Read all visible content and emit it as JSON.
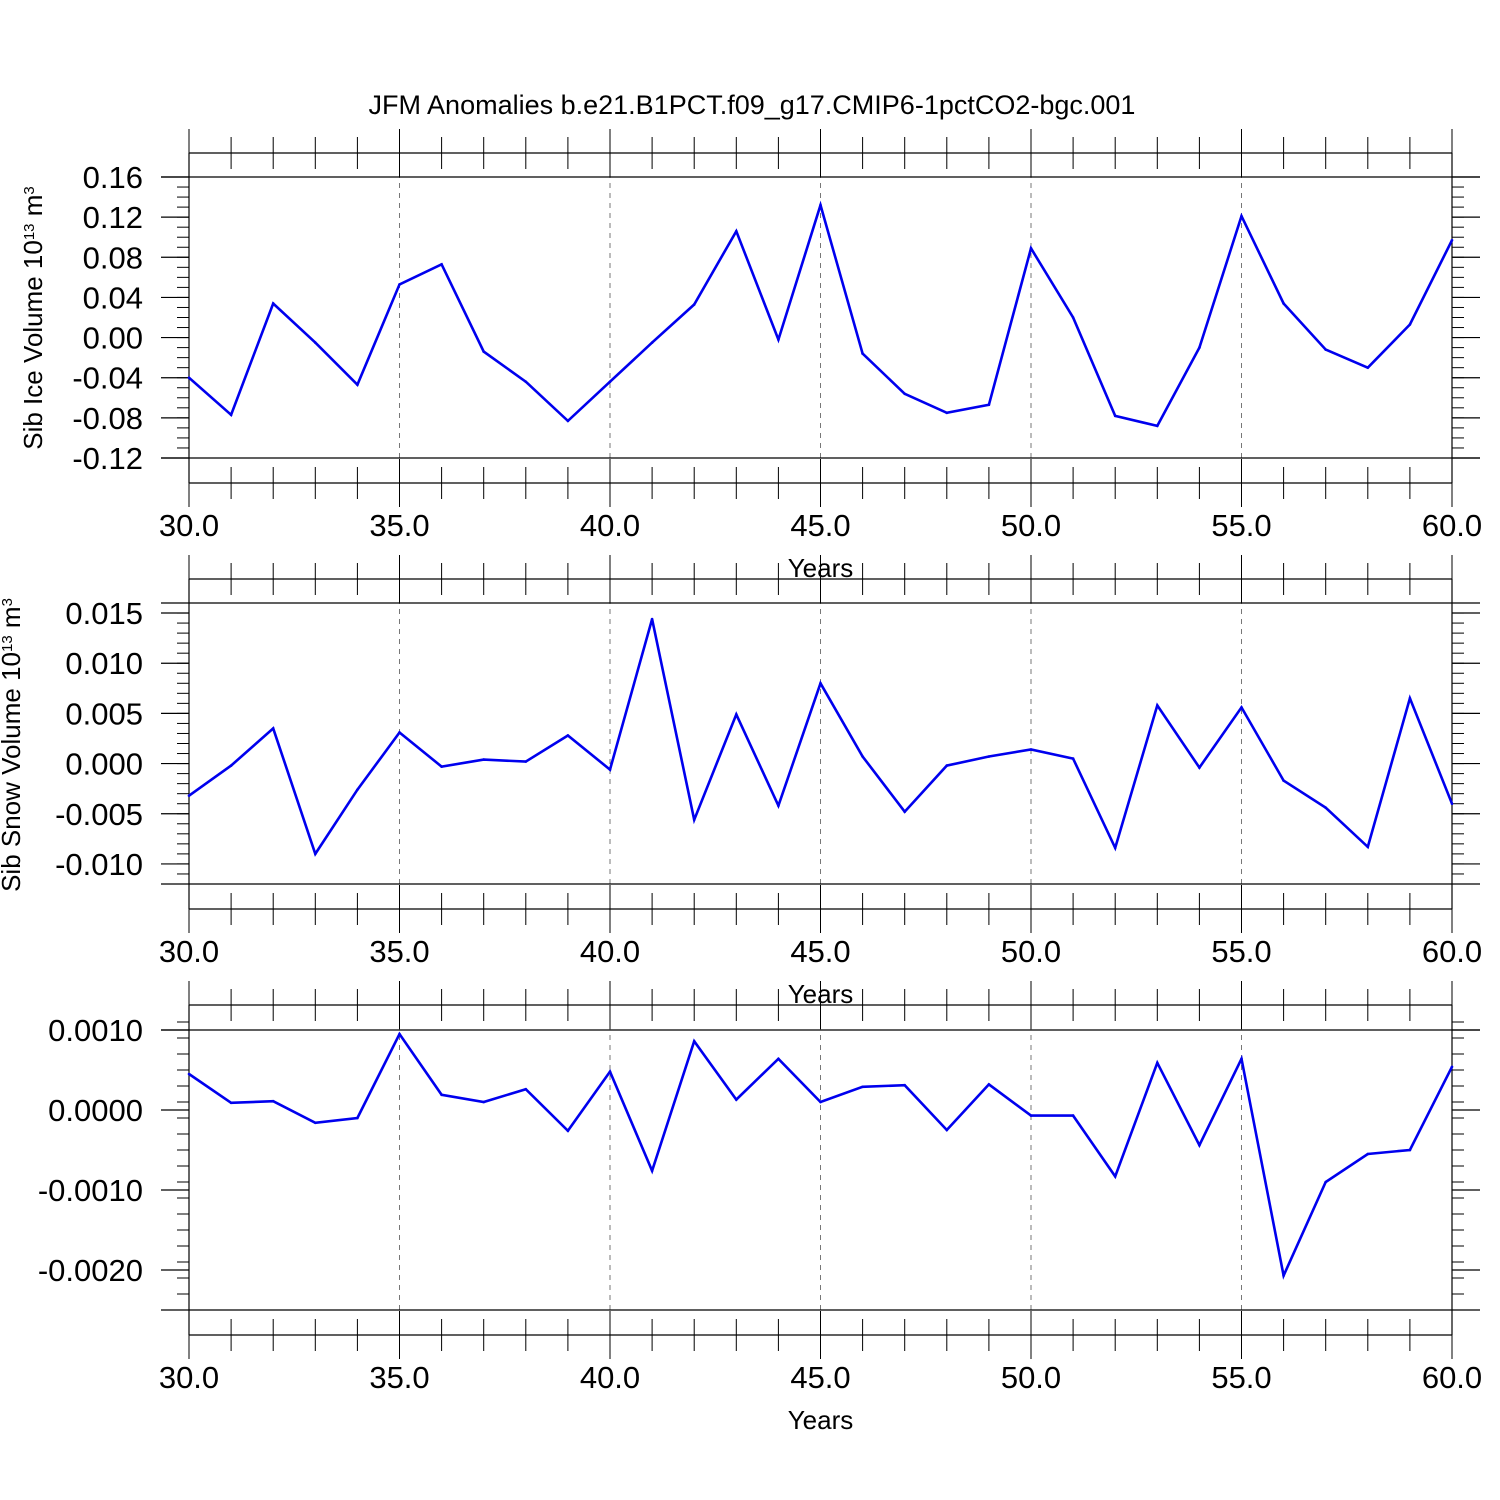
{
  "figure": {
    "title": "JFM Anomalies b.e21.B1PCT.f09_g17.CMIP6-1pctCO2-bgc.001",
    "line_color": "#0000ee",
    "grid_color": "#777777"
  },
  "chart_data": [
    {
      "type": "line",
      "ylabel": "Sib Ice Volume 10",
      "ylabel_sup": "13",
      "ylabel_unit": " m",
      "ylabel_unit_sup": "3",
      "xlabel": "Years",
      "xlim": [
        30,
        60
      ],
      "ylim": [
        -0.12,
        0.16
      ],
      "x_ticks": [
        30,
        35,
        40,
        45,
        50,
        55,
        60
      ],
      "x_tick_labels": [
        "30.0",
        "35.0",
        "40.0",
        "45.0",
        "50.0",
        "55.0",
        "60.0"
      ],
      "y_ticks": [
        -0.12,
        -0.08,
        -0.04,
        0.0,
        0.04,
        0.08,
        0.12,
        0.16
      ],
      "y_tick_labels": [
        "-0.12",
        "-0.08",
        "-0.04",
        "0.00",
        "0.04",
        "0.08",
        "0.12",
        "0.16"
      ],
      "y_minor_step": 0.01,
      "grid": "vertical dashed at major x ticks",
      "x": [
        30,
        31,
        32,
        33,
        34,
        35,
        36,
        37,
        38,
        39,
        40,
        41,
        42,
        43,
        44,
        45,
        46,
        47,
        48,
        49,
        50,
        51,
        52,
        53,
        54,
        55,
        56,
        57,
        58,
        59,
        60
      ],
      "y": [
        -0.04,
        -0.077,
        0.034,
        -0.005,
        -0.047,
        0.053,
        0.073,
        -0.014,
        -0.044,
        -0.083,
        -0.044,
        -0.005,
        0.033,
        0.106,
        -0.002,
        0.132,
        -0.016,
        -0.056,
        -0.075,
        -0.067,
        0.089,
        0.02,
        -0.078,
        -0.088,
        -0.01,
        0.121,
        0.034,
        -0.012,
        -0.03,
        0.013,
        0.097
      ]
    },
    {
      "type": "line",
      "ylabel": "Sib Snow Volume 10",
      "ylabel_sup": "13",
      "ylabel_unit": " m",
      "ylabel_unit_sup": "3",
      "xlabel": "Years",
      "xlim": [
        30,
        60
      ],
      "ylim": [
        -0.012,
        0.016
      ],
      "x_ticks": [
        30,
        35,
        40,
        45,
        50,
        55,
        60
      ],
      "x_tick_labels": [
        "30.0",
        "35.0",
        "40.0",
        "45.0",
        "50.0",
        "55.0",
        "60.0"
      ],
      "y_ticks": [
        -0.01,
        -0.005,
        0.0,
        0.005,
        0.01,
        0.015
      ],
      "y_tick_labels": [
        "-0.010",
        "-0.005",
        "0.000",
        "0.005",
        "0.010",
        "0.015"
      ],
      "y_minor_step": 0.001,
      "grid": "vertical dashed at major x ticks",
      "x": [
        30,
        31,
        32,
        33,
        34,
        35,
        36,
        37,
        38,
        39,
        40,
        41,
        42,
        43,
        44,
        45,
        46,
        47,
        48,
        49,
        50,
        51,
        52,
        53,
        54,
        55,
        56,
        57,
        58,
        59,
        60
      ],
      "y": [
        -0.0032,
        -0.0002,
        0.0035,
        -0.009,
        -0.0026,
        0.0031,
        -0.0003,
        0.0004,
        0.0002,
        0.0028,
        -0.0006,
        0.0144,
        -0.0056,
        0.0049,
        -0.0042,
        0.008,
        0.0007,
        -0.0048,
        -0.0002,
        0.0007,
        0.0014,
        0.0005,
        -0.0084,
        0.0058,
        -0.0004,
        0.0056,
        -0.0017,
        -0.0044,
        -0.0083,
        0.0065,
        -0.004
      ]
    },
    {
      "type": "line",
      "ylabel": "",
      "xlabel": "Years",
      "xlim": [
        30,
        60
      ],
      "ylim": [
        -0.0025,
        0.001
      ],
      "x_ticks": [
        30,
        35,
        40,
        45,
        50,
        55,
        60
      ],
      "x_tick_labels": [
        "30.0",
        "35.0",
        "40.0",
        "45.0",
        "50.0",
        "55.0",
        "60.0"
      ],
      "y_ticks": [
        -0.002,
        -0.001,
        0.0,
        0.001
      ],
      "y_tick_labels": [
        "-0.0020",
        "-0.0010",
        "0.0000",
        "0.0010"
      ],
      "y_minor_step": 0.0002,
      "grid": "vertical dashed at major x ticks",
      "x": [
        30,
        31,
        32,
        33,
        34,
        35,
        36,
        37,
        38,
        39,
        40,
        41,
        42,
        43,
        44,
        45,
        46,
        47,
        48,
        49,
        50,
        51,
        52,
        53,
        54,
        55,
        56,
        57,
        58,
        59,
        60
      ],
      "y": [
        0.00045,
        9e-05,
        0.00011,
        -0.00016,
        -0.0001,
        0.00095,
        0.00019,
        0.0001,
        0.00026,
        -0.00026,
        0.00048,
        -0.00076,
        0.00086,
        0.00013,
        0.00064,
        0.0001,
        0.00029,
        0.00031,
        -0.00025,
        0.00032,
        -7e-05,
        -7e-05,
        -0.00083,
        0.00059,
        -0.00044,
        0.00064,
        -0.00207,
        -0.0009,
        -0.00055,
        -0.0005,
        0.00054
      ]
    }
  ]
}
